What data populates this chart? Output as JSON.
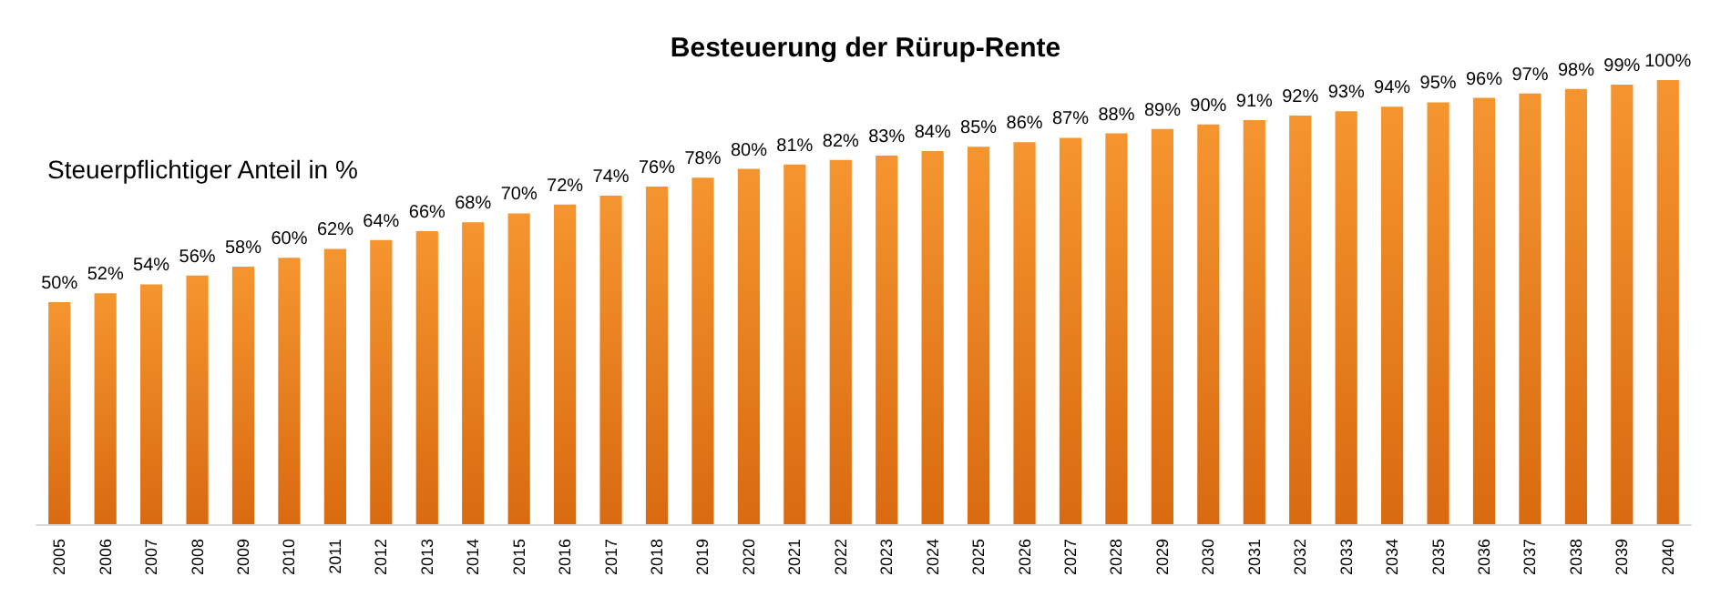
{
  "chart_data": {
    "type": "bar",
    "title": "Besteuerung der Rürup-Rente",
    "ylabel": "Steuerpflichtiger Anteil in %",
    "categories": [
      "2005",
      "2006",
      "2007",
      "2008",
      "2009",
      "2010",
      "2011",
      "2012",
      "2013",
      "2014",
      "2015",
      "2016",
      "2017",
      "2018",
      "2019",
      "2020",
      "2021",
      "2022",
      "2023",
      "2024",
      "2025",
      "2026",
      "2027",
      "2028",
      "2029",
      "2030",
      "2031",
      "2032",
      "2033",
      "2034",
      "2035",
      "2036",
      "2037",
      "2038",
      "2039",
      "2040"
    ],
    "values": [
      50,
      52,
      54,
      56,
      58,
      60,
      62,
      64,
      66,
      68,
      70,
      72,
      74,
      76,
      78,
      80,
      81,
      82,
      83,
      84,
      85,
      86,
      87,
      88,
      89,
      90,
      91,
      92,
      93,
      94,
      95,
      96,
      97,
      98,
      99,
      100
    ],
    "value_labels": [
      "50%",
      "52%",
      "54%",
      "56%",
      "58%",
      "60%",
      "62%",
      "64%",
      "66%",
      "68%",
      "70%",
      "72%",
      "74%",
      "76%",
      "78%",
      "80%",
      "81%",
      "82%",
      "83%",
      "84%",
      "85%",
      "86%",
      "87%",
      "88%",
      "89%",
      "90%",
      "91%",
      "92%",
      "93%",
      "94%",
      "95%",
      "96%",
      "97%",
      "98%",
      "99%",
      "100%"
    ],
    "color": "#f59530"
  }
}
